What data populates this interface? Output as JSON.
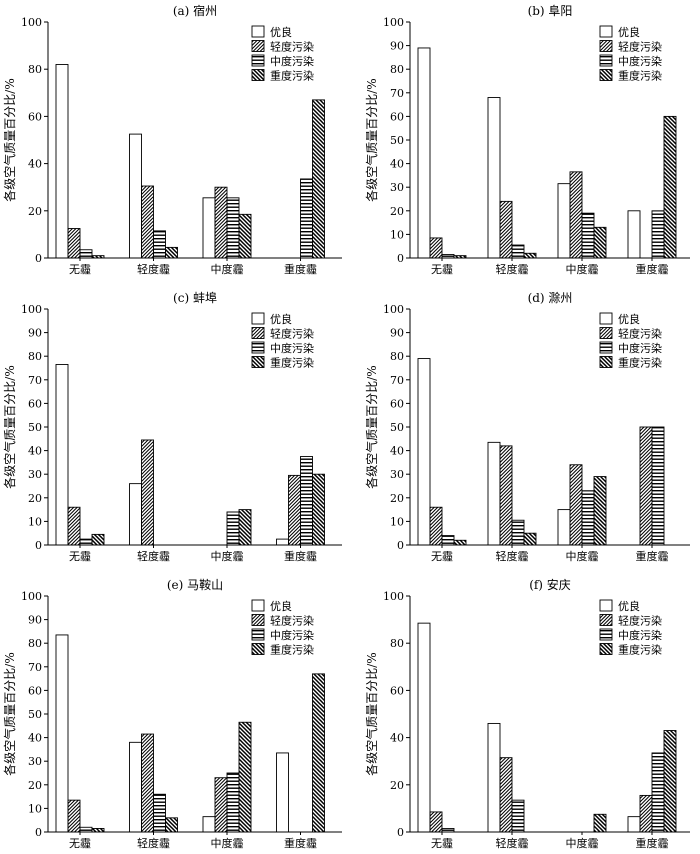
{
  "legend_labels": [
    "优良",
    "轻度污染",
    "中度污染",
    "重度污染"
  ],
  "ylabel": "各级空气质量百分比/%",
  "categories": [
    "无霾",
    "轻度霾",
    "中度霾",
    "重度霾"
  ],
  "chart_data": [
    {
      "type": "bar",
      "title": "(a) 宿州",
      "categories": [
        "无霾",
        "轻度霾",
        "中度霾",
        "重度霾"
      ],
      "ylim": [
        0,
        100
      ],
      "yticks": [
        0,
        20,
        40,
        60,
        80,
        100
      ],
      "ylabel": "各级空气质量百分比/%",
      "legend": "top-right",
      "series": [
        {
          "name": "优良",
          "values": [
            82,
            52.5,
            25.5,
            0
          ]
        },
        {
          "name": "轻度污染",
          "values": [
            12.5,
            30.5,
            30,
            0
          ]
        },
        {
          "name": "中度污染",
          "values": [
            3.5,
            11.5,
            25.5,
            33.5
          ]
        },
        {
          "name": "重度污染",
          "values": [
            1,
            4.5,
            18.5,
            67
          ]
        }
      ]
    },
    {
      "type": "bar",
      "title": "(b) 阜阳",
      "categories": [
        "无霾",
        "轻度霾",
        "中度霾",
        "重度霾"
      ],
      "ylim": [
        0,
        100
      ],
      "yticks": [
        0,
        10,
        20,
        30,
        40,
        50,
        60,
        70,
        80,
        90,
        100
      ],
      "ylabel": "各级空气质量百分比/%",
      "legend": "top-right",
      "series": [
        {
          "name": "优良",
          "values": [
            89,
            68,
            31.5,
            20
          ]
        },
        {
          "name": "轻度污染",
          "values": [
            8.5,
            24,
            36.5,
            0
          ]
        },
        {
          "name": "中度污染",
          "values": [
            1.5,
            5.5,
            19,
            20
          ]
        },
        {
          "name": "重度污染",
          "values": [
            1,
            2,
            13,
            60
          ]
        }
      ]
    },
    {
      "type": "bar",
      "title": "(c) 蚌埠",
      "categories": [
        "无霾",
        "轻度霾",
        "中度霾",
        "重度霾"
      ],
      "ylim": [
        0,
        100
      ],
      "yticks": [
        0,
        10,
        20,
        30,
        40,
        50,
        60,
        70,
        80,
        90,
        100
      ],
      "ylabel": "各级空气质量百分比/%",
      "legend": "top-right",
      "series": [
        {
          "name": "优良",
          "values": [
            76.5,
            26,
            0,
            2.5
          ]
        },
        {
          "name": "轻度污染",
          "values": [
            16,
            44.5,
            0,
            29.5
          ]
        },
        {
          "name": "中度污染",
          "values": [
            2.5,
            0,
            14,
            37.5
          ]
        },
        {
          "name": "重度污染",
          "values": [
            4.5,
            0,
            15,
            30
          ]
        }
      ]
    },
    {
      "type": "bar",
      "title": "(d) 滁州",
      "categories": [
        "无霾",
        "轻度霾",
        "中度霾",
        "重度霾"
      ],
      "ylim": [
        0,
        100
      ],
      "yticks": [
        0,
        10,
        20,
        30,
        40,
        50,
        60,
        70,
        80,
        90,
        100
      ],
      "ylabel": "各级空气质量百分比/%",
      "legend": "top-right",
      "series": [
        {
          "name": "优良",
          "values": [
            79,
            43.5,
            15,
            0
          ]
        },
        {
          "name": "轻度污染",
          "values": [
            16,
            42,
            34,
            50
          ]
        },
        {
          "name": "中度污染",
          "values": [
            4,
            10.5,
            23,
            50
          ]
        },
        {
          "name": "重度污染",
          "values": [
            2,
            5,
            29,
            0
          ]
        }
      ]
    },
    {
      "type": "bar",
      "title": "(e) 马鞍山",
      "categories": [
        "无霾",
        "轻度霾",
        "中度霾",
        "重度霾"
      ],
      "ylim": [
        0,
        100
      ],
      "yticks": [
        0,
        10,
        20,
        30,
        40,
        50,
        60,
        70,
        80,
        90,
        100
      ],
      "ylabel": "各级空气质量百分比/%",
      "legend": "top-right",
      "series": [
        {
          "name": "优良",
          "values": [
            83.5,
            38,
            6.5,
            33.5
          ]
        },
        {
          "name": "轻度污染",
          "values": [
            13.5,
            41.5,
            23,
            0
          ]
        },
        {
          "name": "中度污染",
          "values": [
            2,
            16,
            25,
            0
          ]
        },
        {
          "name": "重度污染",
          "values": [
            1.5,
            6,
            46.5,
            67
          ]
        }
      ]
    },
    {
      "type": "bar",
      "title": "(f) 安庆",
      "categories": [
        "无霾",
        "轻度霾",
        "中度霾",
        "重度霾"
      ],
      "ylim": [
        0,
        100
      ],
      "yticks": [
        0,
        20,
        40,
        60,
        80,
        100
      ],
      "ylabel": "各级空气质量百分比/%",
      "legend": "top-right",
      "series": [
        {
          "name": "优良",
          "values": [
            88.5,
            46,
            0,
            6.5
          ]
        },
        {
          "name": "轻度污染",
          "values": [
            8.5,
            31.5,
            0,
            15.5
          ]
        },
        {
          "name": "中度污染",
          "values": [
            1.5,
            13.5,
            0,
            33.5
          ]
        },
        {
          "name": "重度污染",
          "values": [
            0,
            0,
            7.5,
            43
          ]
        }
      ]
    }
  ]
}
